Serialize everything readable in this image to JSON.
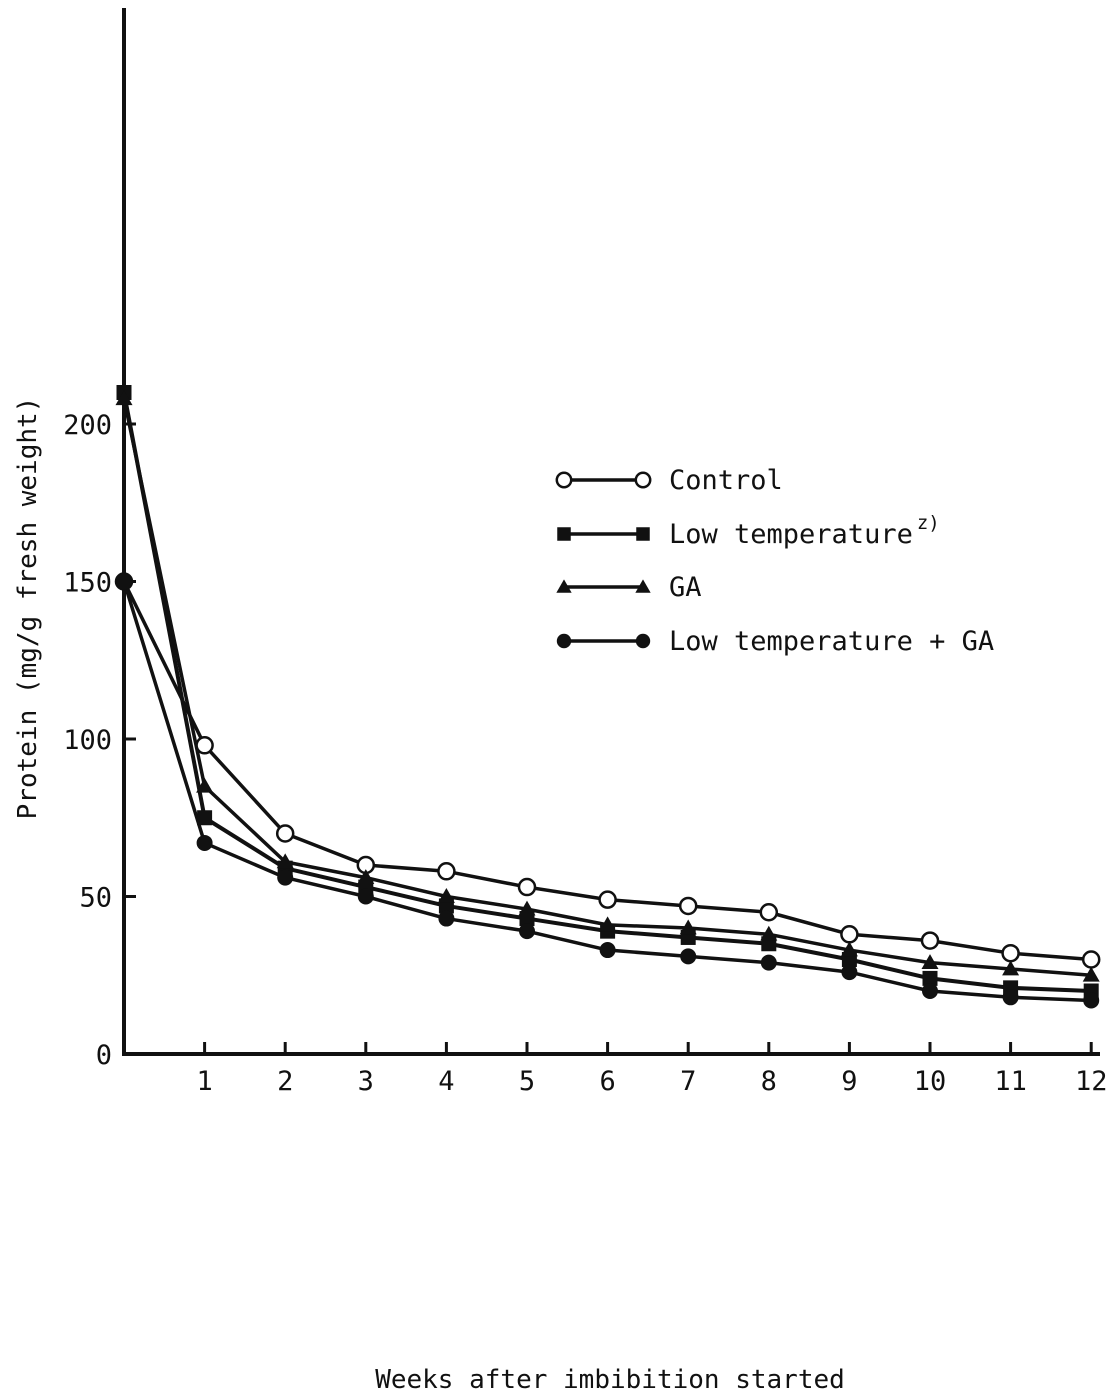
{
  "chart_data": {
    "type": "line",
    "xlabel": "Weeks after imbibition started",
    "ylabel": "Protein (mg/g fresh weight)",
    "xlim": [
      0,
      12
    ],
    "ylim": [
      0,
      220
    ],
    "x_ticks": [
      "1",
      "2",
      "3",
      "4",
      "5",
      "6",
      "7",
      "8",
      "9",
      "10",
      "11",
      "12"
    ],
    "y_ticks": [
      "0",
      "50",
      "100",
      "150",
      "200"
    ],
    "grid": false,
    "legend_position": "center-right",
    "series": [
      {
        "name": "Control",
        "marker": "open-circle",
        "x": [
          0,
          1,
          2,
          3,
          4,
          5,
          6,
          7,
          8,
          9,
          10,
          11,
          12
        ],
        "values": [
          150,
          98,
          70,
          60,
          58,
          53,
          49,
          47,
          45,
          38,
          36,
          32,
          30
        ]
      },
      {
        "name": "Low temperature",
        "name_superscript": "z)",
        "marker": "filled-square",
        "x": [
          0,
          1,
          2,
          3,
          4,
          5,
          6,
          7,
          8,
          9,
          10,
          11,
          12
        ],
        "values": [
          210,
          75,
          59,
          53,
          47,
          43,
          39,
          37,
          35,
          30,
          24,
          21,
          20
        ]
      },
      {
        "name": "GA",
        "marker": "filled-triangle",
        "x": [
          0,
          1,
          2,
          3,
          4,
          5,
          6,
          7,
          8,
          9,
          10,
          11,
          12
        ],
        "values": [
          208,
          85,
          61,
          56,
          50,
          46,
          41,
          40,
          38,
          33,
          29,
          27,
          25
        ]
      },
      {
        "name": "Low temperature + GA",
        "marker": "filled-circle",
        "x": [
          0,
          1,
          2,
          3,
          4,
          5,
          6,
          7,
          8,
          9,
          10,
          11,
          12
        ],
        "values": [
          150,
          67,
          56,
          50,
          43,
          39,
          33,
          31,
          29,
          26,
          20,
          18,
          17
        ]
      }
    ]
  }
}
